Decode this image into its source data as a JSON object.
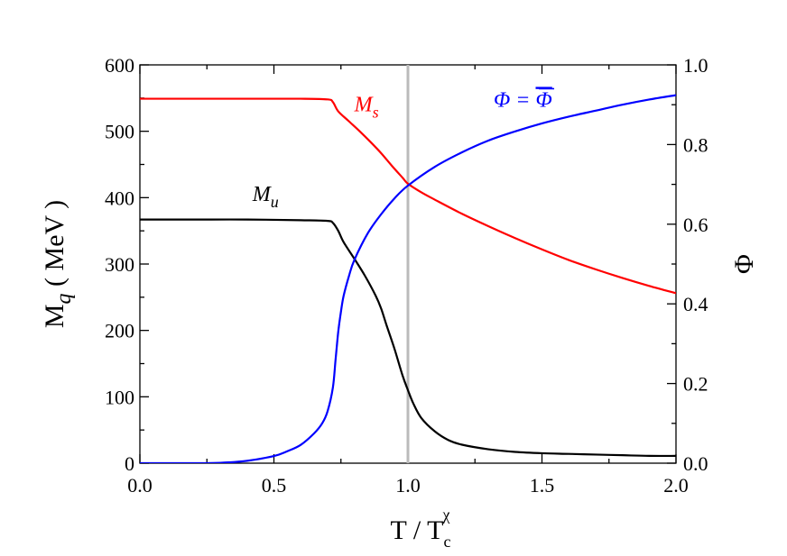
{
  "chart_data": {
    "type": "line",
    "xlabel": "T / T",
    "xlabel_sub": "c",
    "xlabel_sup": "χ",
    "ylabel": "M",
    "ylabel_sub": "q",
    "ylabel_unit": " ( MeV )",
    "y2label": "Φ",
    "xlim": [
      0.0,
      2.0
    ],
    "ylim": [
      0,
      600
    ],
    "y2lim": [
      0.0,
      1.0
    ],
    "xticks": [
      0.0,
      0.5,
      1.0,
      1.5,
      2.0
    ],
    "xtick_labels": [
      "0.0",
      "0.5",
      "1.0",
      "1.5",
      "2.0"
    ],
    "yticks": [
      0,
      100,
      200,
      300,
      400,
      500,
      600
    ],
    "ytick_labels": [
      "0",
      "100",
      "200",
      "300",
      "400",
      "500",
      "600"
    ],
    "y2ticks": [
      0.0,
      0.2,
      0.4,
      0.6,
      0.8,
      1.0
    ],
    "y2tick_labels": [
      "0.0",
      "0.2",
      "0.4",
      "0.6",
      "0.8",
      "1.0"
    ],
    "grid": false,
    "vertical_line": {
      "x": 1.0,
      "color": "#bbbbbb"
    },
    "series": [
      {
        "axis": "left",
        "color": "#ff0000",
        "label_main": "M",
        "label_sub": "s",
        "label_at": [
          0.8,
          530
        ],
        "x": [
          0.0,
          0.2,
          0.4,
          0.6,
          0.7,
          0.72,
          0.74,
          0.78,
          0.82,
          0.86,
          0.9,
          0.94,
          0.98,
          1.0,
          1.05,
          1.1,
          1.2,
          1.3,
          1.4,
          1.5,
          1.6,
          1.7,
          1.8,
          1.9,
          2.0
        ],
        "y": [
          549,
          549,
          549,
          549,
          548,
          544,
          530,
          515,
          500,
          484,
          467,
          448,
          430,
          421,
          408,
          397,
          376,
          357,
          339,
          322,
          306,
          292,
          279,
          267,
          256
        ]
      },
      {
        "axis": "left",
        "color": "#000000",
        "label_main": "M",
        "label_sub": "u",
        "label_at": [
          0.42,
          395
        ],
        "x": [
          0.0,
          0.2,
          0.4,
          0.6,
          0.7,
          0.72,
          0.74,
          0.76,
          0.8,
          0.84,
          0.88,
          0.9,
          0.92,
          0.95,
          0.98,
          1.0,
          1.02,
          1.05,
          1.1,
          1.15,
          1.2,
          1.3,
          1.4,
          1.5,
          1.6,
          1.7,
          1.8,
          1.9,
          2.0
        ],
        "y": [
          367,
          367,
          367,
          366,
          365,
          362,
          350,
          333,
          308,
          282,
          252,
          233,
          208,
          172,
          132,
          110,
          90,
          68,
          48,
          35,
          28,
          21,
          17,
          15,
          14,
          13,
          12,
          11,
          11
        ]
      },
      {
        "axis": "right",
        "color": "#0000ff",
        "label_main": "Φ = ",
        "label_bar": "Φ",
        "label_at": [
          1.32,
          0.895
        ],
        "x": [
          0.0,
          0.2,
          0.3,
          0.4,
          0.5,
          0.55,
          0.6,
          0.65,
          0.68,
          0.7,
          0.72,
          0.73,
          0.74,
          0.75,
          0.76,
          0.78,
          0.8,
          0.85,
          0.9,
          0.95,
          1.0,
          1.1,
          1.2,
          1.3,
          1.4,
          1.5,
          1.6,
          1.7,
          1.8,
          1.9,
          2.0
        ],
        "y": [
          0.0,
          0.0,
          0.001,
          0.006,
          0.018,
          0.03,
          0.046,
          0.075,
          0.1,
          0.13,
          0.19,
          0.26,
          0.33,
          0.38,
          0.42,
          0.47,
          0.51,
          0.577,
          0.625,
          0.665,
          0.697,
          0.744,
          0.78,
          0.81,
          0.833,
          0.853,
          0.87,
          0.885,
          0.9,
          0.913,
          0.924
        ]
      }
    ]
  }
}
